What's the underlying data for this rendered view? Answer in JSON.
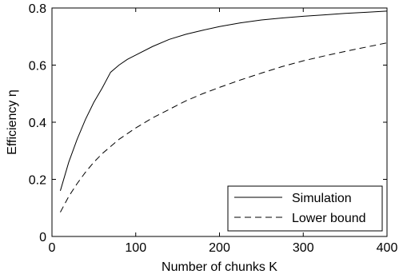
{
  "chart_data": {
    "type": "line",
    "xlabel": "Number of chunks K",
    "ylabel": "Efficiency η",
    "xlim": [
      0,
      400
    ],
    "ylim": [
      0,
      0.8
    ],
    "xticks": [
      "0",
      "100",
      "200",
      "300",
      "400"
    ],
    "yticks": [
      "0",
      "0.2",
      "0.4",
      "0.6",
      "0.8"
    ],
    "grid": false,
    "legend_position": "bottom-right",
    "series": [
      {
        "name": "Simulation",
        "style": "solid",
        "color": "#000000",
        "x": [
          10,
          20,
          30,
          40,
          50,
          60,
          70,
          80,
          90,
          100,
          120,
          140,
          160,
          180,
          200,
          225,
          250,
          275,
          300,
          325,
          350,
          375,
          400
        ],
        "y": [
          0.16,
          0.26,
          0.34,
          0.41,
          0.47,
          0.52,
          0.575,
          0.6,
          0.62,
          0.635,
          0.665,
          0.69,
          0.708,
          0.722,
          0.735,
          0.748,
          0.758,
          0.765,
          0.771,
          0.776,
          0.781,
          0.785,
          0.789
        ]
      },
      {
        "name": "Lower bound",
        "style": "dashed",
        "color": "#000000",
        "x": [
          10,
          20,
          30,
          40,
          50,
          60,
          70,
          80,
          90,
          100,
          120,
          140,
          160,
          180,
          200,
          225,
          250,
          275,
          300,
          325,
          350,
          375,
          400
        ],
        "y": [
          0.085,
          0.14,
          0.185,
          0.225,
          0.26,
          0.29,
          0.315,
          0.34,
          0.36,
          0.38,
          0.415,
          0.445,
          0.475,
          0.5,
          0.522,
          0.548,
          0.572,
          0.595,
          0.615,
          0.632,
          0.648,
          0.663,
          0.678
        ]
      }
    ]
  }
}
